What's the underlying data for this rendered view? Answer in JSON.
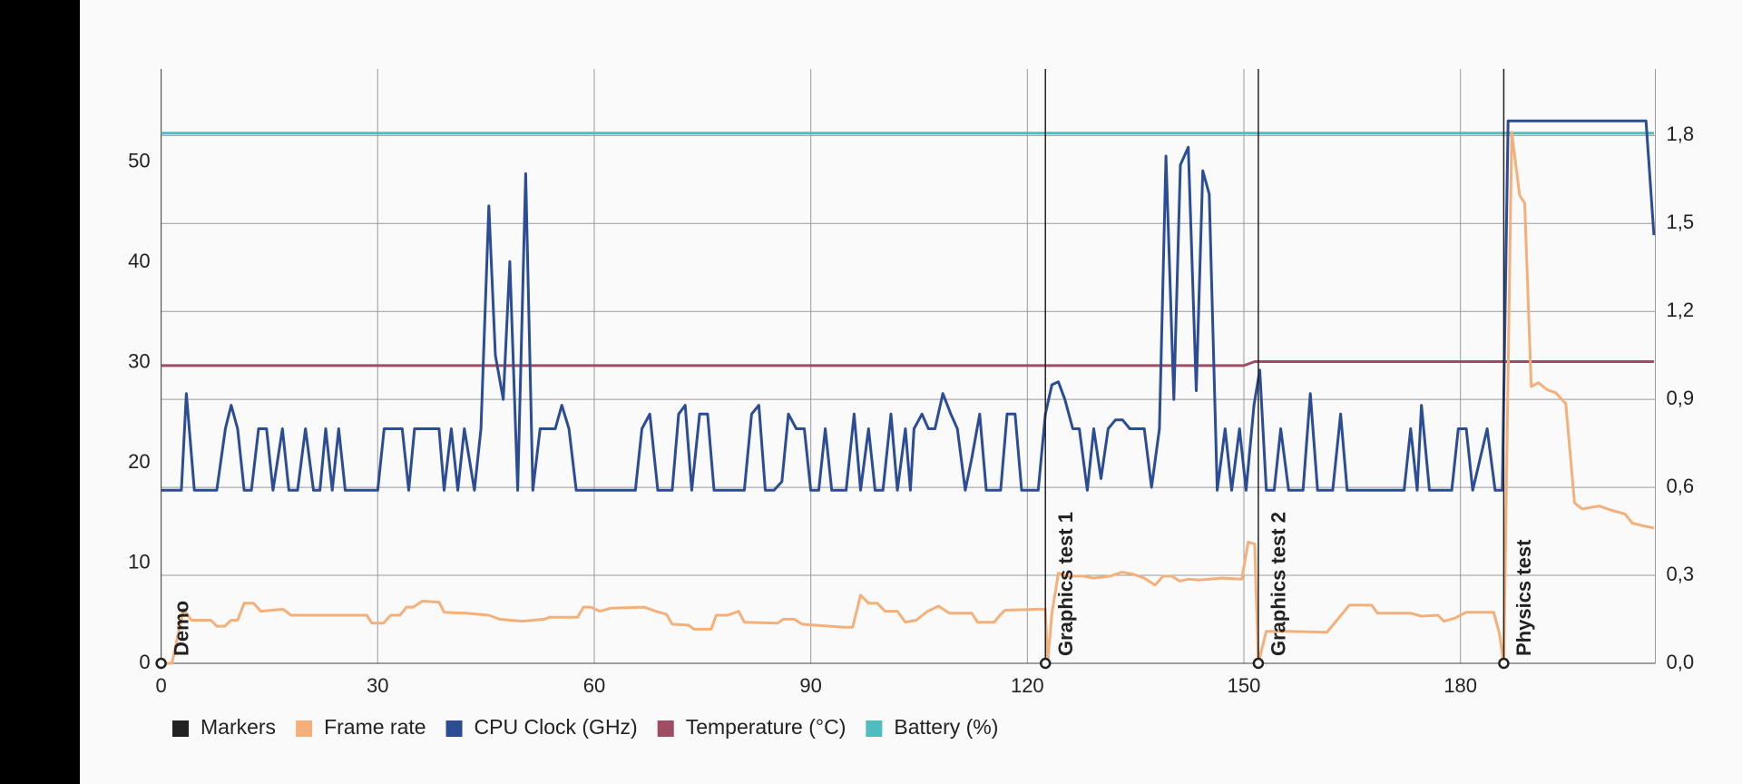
{
  "chart_data": {
    "type": "line",
    "xlim": [
      0,
      207
    ],
    "xticks": [
      0,
      30,
      60,
      90,
      120,
      150,
      180
    ],
    "ylim": [
      0,
      59.3
    ],
    "yticks": [
      0,
      10,
      20,
      30,
      40,
      50
    ],
    "y2lim": [
      0,
      2.027
    ],
    "y2ticks": [
      {
        "value": 0,
        "label": "0,0"
      },
      {
        "value": 0.3,
        "label": "0,3"
      },
      {
        "value": 0.6,
        "label": "0,6"
      },
      {
        "value": 0.9,
        "label": "0,9"
      },
      {
        "value": 1.2,
        "label": "1,2"
      },
      {
        "value": 1.5,
        "label": "1,5"
      },
      {
        "value": 1.8,
        "label": "1,8"
      }
    ],
    "grid": true,
    "legend": "bottom",
    "markers": {
      "name": "Markers",
      "color": "#222222",
      "x": [
        0,
        122.5,
        152,
        186
      ],
      "labels": [
        "Demo",
        "Graphics test 1",
        "Graphics test 2",
        "Physics test"
      ]
    },
    "series": [
      {
        "name": "Frame rate",
        "color": "#f5b07a",
        "axis": "y",
        "x": [
          0,
          1.5,
          3.1,
          4.2,
          6.9,
          7.7,
          8.8,
          9.7,
          10.6,
          11.5,
          12.8,
          13.8,
          16.9,
          18,
          28.5,
          29.2,
          30.8,
          31.8,
          33.1,
          34,
          34.9,
          36.2,
          38.5,
          39.2,
          42.3,
          45.4,
          46.9,
          50,
          53.1,
          53.8,
          57.7,
          58.5,
          59.5,
          60.8,
          62.3,
          66.9,
          68.5,
          70,
          70.8,
          73.1,
          73.8,
          76.2,
          76.9,
          78.5,
          80,
          80.8,
          85.4,
          86.2,
          87.7,
          88.8,
          94.6,
          95.8,
          96.9,
          98,
          99.2,
          100.3,
          102,
          103.1,
          104.6,
          106.2,
          107.7,
          109.2,
          112.3,
          113.1,
          115.4,
          116.2,
          116.9,
          121.5,
          122.5,
          122.8,
          123.4,
          124.3,
          125.4,
          127.7,
          129.2,
          131.5,
          133.1,
          134.6,
          136.2,
          137.7,
          138.8,
          140,
          141.1,
          142.3,
          143.8,
          146.9,
          149.7,
          150.6,
          151.5,
          152,
          153.1,
          156.2,
          161.5,
          162.3,
          164.6,
          167.7,
          168.5,
          173.1,
          174.6,
          176.9,
          177.7,
          179.2,
          180.8,
          184.6,
          185.4,
          186,
          187.1,
          188.2,
          188.9,
          189.8,
          190.8,
          192,
          193.2,
          194.6,
          195.8,
          196.9,
          199.2,
          200.8,
          202.8,
          203.8,
          205.4,
          206.8
        ],
        "values": [
          0,
          0,
          5.4,
          4.3,
          4.3,
          3.7,
          3.7,
          4.3,
          4.3,
          6.0,
          6.0,
          5.2,
          5.4,
          4.8,
          4.8,
          4.0,
          4.0,
          4.8,
          4.8,
          5.6,
          5.6,
          6.2,
          6.1,
          5.1,
          5.0,
          4.8,
          4.4,
          4.2,
          4.4,
          4.6,
          4.6,
          5.6,
          5.6,
          5.2,
          5.5,
          5.6,
          5.2,
          4.9,
          3.9,
          3.8,
          3.4,
          3.4,
          4.8,
          4.8,
          5.2,
          4.1,
          4.0,
          4.4,
          4.4,
          3.9,
          3.6,
          3.6,
          6.8,
          6.0,
          6.0,
          5.2,
          5.2,
          4.1,
          4.3,
          5.2,
          5.7,
          5.0,
          5.0,
          4.1,
          4.1,
          4.8,
          5.3,
          5.4,
          5.4,
          0,
          5.0,
          9.0,
          8.7,
          8.7,
          8.5,
          8.7,
          9.1,
          8.9,
          8.5,
          7.8,
          8.7,
          8.7,
          8.2,
          8.4,
          8.3,
          8.5,
          8.4,
          12.1,
          11.9,
          0,
          3.2,
          3.2,
          3.1,
          3.8,
          5.8,
          5.8,
          5.0,
          5.0,
          4.7,
          4.8,
          4.2,
          4.5,
          5.1,
          5.1,
          3.0,
          0,
          53.0,
          46.7,
          45.9,
          27.6,
          28.0,
          27.3,
          27.0,
          25.9,
          16.0,
          15.4,
          15.7,
          15.3,
          14.9,
          14.0,
          13.7,
          13.5
        ]
      },
      {
        "name": "CPU Clock (GHz)",
        "color": "#2b4d96",
        "axis": "y2",
        "x": [
          0,
          2.8,
          3.5,
          4.6,
          7.7,
          8.9,
          9.7,
          10.6,
          11.5,
          12.5,
          13.5,
          14.6,
          15.5,
          16.8,
          17.7,
          18.9,
          20,
          21.1,
          22,
          22.8,
          23.7,
          24.6,
          25.5,
          30,
          30.9,
          33.4,
          34.3,
          35.1,
          38.5,
          39.2,
          40.2,
          41.1,
          42,
          43.4,
          44.3,
          45.4,
          46.3,
          47.4,
          48.3,
          49.4,
          50.5,
          51.5,
          52.5,
          54.6,
          55.5,
          56.5,
          57.5,
          65.7,
          66.6,
          67.7,
          68.8,
          70.8,
          71.7,
          72.6,
          73.5,
          74.6,
          75.7,
          76.6,
          80.8,
          81.8,
          82.8,
          83.7,
          84.9,
          86,
          86.9,
          88,
          89.1,
          90,
          91.1,
          92,
          92.9,
          94.9,
          96,
          96.9,
          98,
          98.9,
          100,
          101.1,
          102,
          103.1,
          103.8,
          104.3,
          105.4,
          106.3,
          107.2,
          108.3,
          109.4,
          110.3,
          111.4,
          112.3,
          113.4,
          114.3,
          116.3,
          117.2,
          118.3,
          119.2,
          121.5,
          122.5,
          123.4,
          124.3,
          125.2,
          126.3,
          127.2,
          128.3,
          129.2,
          130.2,
          131.2,
          132.2,
          133.2,
          134.2,
          136.2,
          137.2,
          138.3,
          139.2,
          140.3,
          141.2,
          142.3,
          143.4,
          144.3,
          145.2,
          146.3,
          147.4,
          148.3,
          149.4,
          150.3,
          151.4,
          152.2,
          153.1,
          154.2,
          155.1,
          156.2,
          158.2,
          159.2,
          160.2,
          162.3,
          163.4,
          164.3,
          172.2,
          173.1,
          174,
          174.6,
          175.7,
          178.8,
          179.7,
          180.8,
          181.7,
          183.7,
          184.8,
          185.8,
          186.6,
          205.7,
          206.8
        ],
        "values": [
          0.59,
          0.59,
          0.92,
          0.59,
          0.59,
          0.8,
          0.88,
          0.8,
          0.59,
          0.59,
          0.8,
          0.8,
          0.59,
          0.8,
          0.59,
          0.59,
          0.8,
          0.59,
          0.59,
          0.8,
          0.59,
          0.8,
          0.59,
          0.59,
          0.8,
          0.8,
          0.59,
          0.8,
          0.8,
          0.59,
          0.8,
          0.59,
          0.8,
          0.59,
          0.8,
          1.56,
          1.05,
          0.9,
          1.37,
          0.59,
          1.67,
          0.59,
          0.8,
          0.8,
          0.88,
          0.8,
          0.59,
          0.59,
          0.8,
          0.85,
          0.59,
          0.59,
          0.85,
          0.88,
          0.59,
          0.85,
          0.85,
          0.59,
          0.59,
          0.85,
          0.88,
          0.59,
          0.59,
          0.62,
          0.85,
          0.8,
          0.8,
          0.59,
          0.59,
          0.8,
          0.59,
          0.59,
          0.85,
          0.59,
          0.8,
          0.59,
          0.59,
          0.85,
          0.59,
          0.8,
          0.59,
          0.8,
          0.85,
          0.8,
          0.8,
          0.92,
          0.85,
          0.8,
          0.59,
          0.7,
          0.85,
          0.59,
          0.59,
          0.85,
          0.85,
          0.59,
          0.59,
          0.85,
          0.95,
          0.96,
          0.9,
          0.8,
          0.8,
          0.59,
          0.8,
          0.63,
          0.8,
          0.83,
          0.83,
          0.8,
          0.8,
          0.6,
          0.8,
          1.73,
          0.9,
          1.7,
          1.76,
          0.93,
          1.68,
          1.6,
          0.59,
          0.8,
          0.59,
          0.8,
          0.59,
          0.88,
          1.0,
          0.59,
          0.59,
          0.8,
          0.59,
          0.59,
          0.92,
          0.59,
          0.59,
          0.85,
          0.59,
          0.59,
          0.8,
          0.59,
          0.88,
          0.59,
          0.59,
          0.8,
          0.8,
          0.59,
          0.8,
          0.59,
          0.59,
          1.85,
          1.85,
          1.46
        ]
      },
      {
        "name": "Temperature (°C)",
        "color": "#9e4d63",
        "axis": "y",
        "x": [
          0,
          150,
          151.5,
          206.8
        ],
        "values": [
          29.7,
          29.7,
          30.1,
          30.1
        ]
      },
      {
        "name": "Battery (%)",
        "color": "#4fbdbd",
        "axis": "y",
        "x": [
          0,
          206.8
        ],
        "values": [
          52.9,
          52.9
        ]
      }
    ]
  }
}
